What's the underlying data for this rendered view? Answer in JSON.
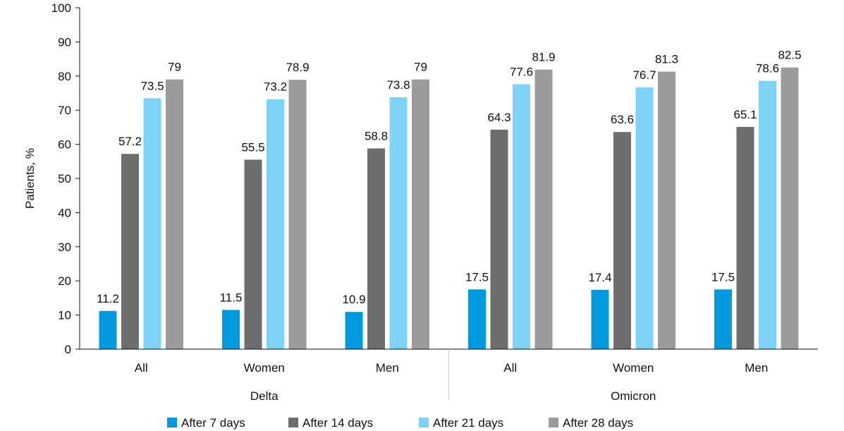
{
  "chart_data": {
    "type": "bar",
    "title": "",
    "xlabel": "",
    "ylabel": "Patients, %",
    "ylim": [
      0,
      100
    ],
    "yticks": [
      0,
      10,
      20,
      30,
      40,
      50,
      60,
      70,
      80,
      90,
      100
    ],
    "grid": false,
    "legend_position": "bottom",
    "categories": [
      "All",
      "Women",
      "Men",
      "All",
      "Women",
      "Men"
    ],
    "groups": [
      {
        "label": "Delta",
        "categories": [
          "All",
          "Women",
          "Men"
        ]
      },
      {
        "label": "Omicron",
        "categories": [
          "All",
          "Women",
          "Men"
        ]
      }
    ],
    "series": [
      {
        "name": "After 7 days",
        "color": "#0099dd",
        "values": [
          11.2,
          11.5,
          10.9,
          17.5,
          17.4,
          17.5
        ]
      },
      {
        "name": "After 14 days",
        "color": "#6e6e6e",
        "values": [
          57.2,
          55.5,
          58.8,
          64.3,
          63.6,
          65.1
        ]
      },
      {
        "name": "After 21 days",
        "color": "#7fd1f5",
        "values": [
          73.5,
          73.2,
          73.8,
          77.6,
          76.7,
          78.6
        ]
      },
      {
        "name": "After 28 days",
        "color": "#9b9b9b",
        "values": [
          79,
          78.9,
          79,
          81.9,
          81.3,
          82.5
        ]
      }
    ]
  }
}
